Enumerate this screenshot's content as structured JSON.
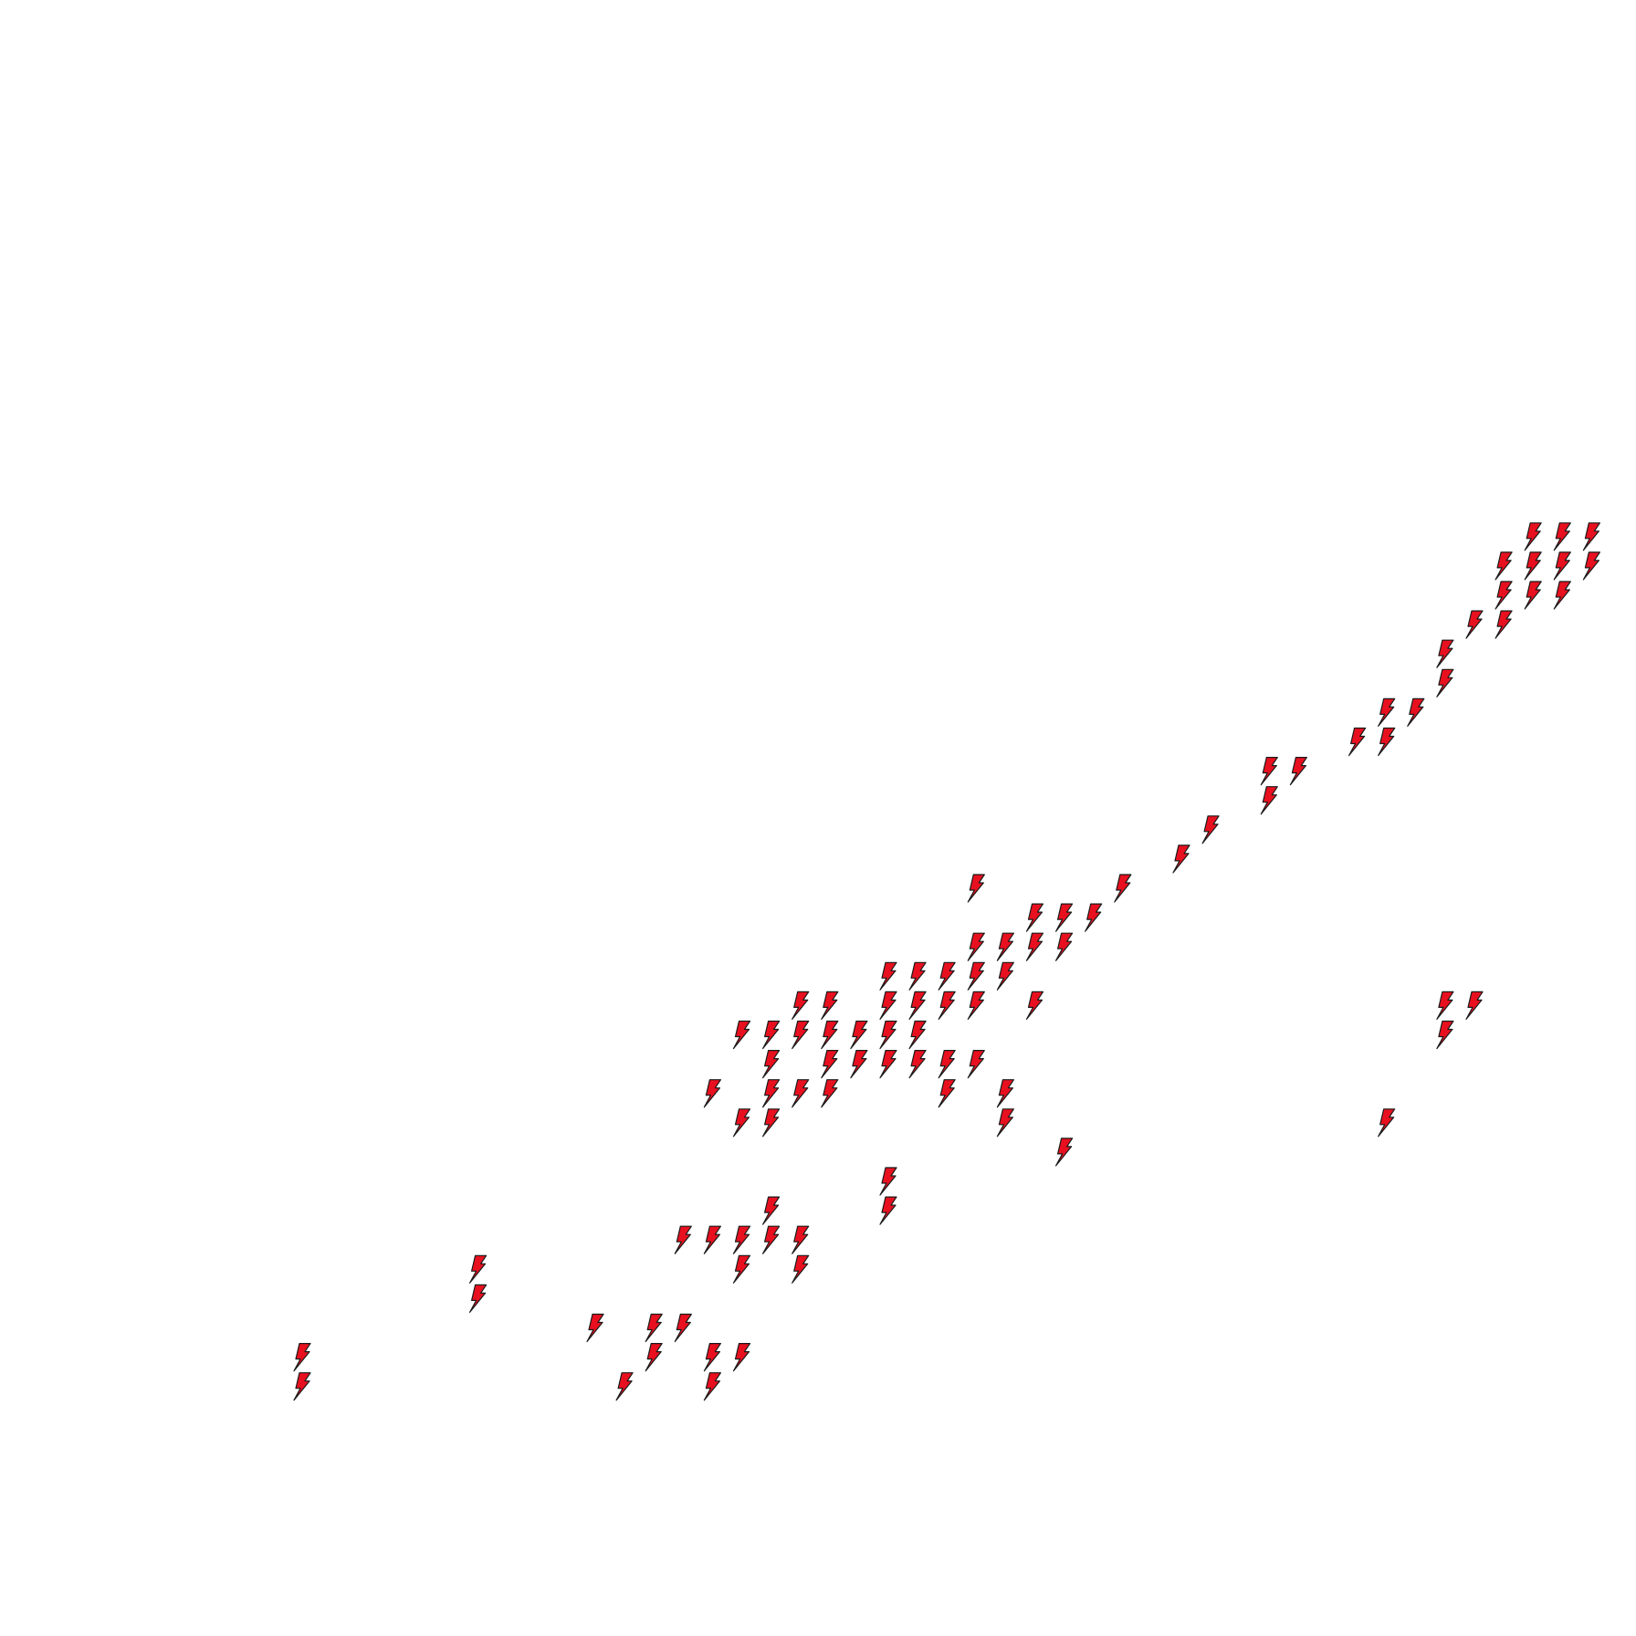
{
  "icon": {
    "name": "lightning-bolt-icon",
    "fill": "#e8101f",
    "stroke": "#1a1a1a"
  },
  "grid": {
    "columns": 55,
    "rows": 55
  },
  "bolts": [
    [
      10,
      46
    ],
    [
      10,
      47
    ],
    [
      16,
      43
    ],
    [
      16,
      44
    ],
    [
      20,
      45
    ],
    [
      21,
      47
    ],
    [
      22,
      45
    ],
    [
      22,
      46
    ],
    [
      23,
      45
    ],
    [
      24,
      46
    ],
    [
      24,
      47
    ],
    [
      25,
      46
    ],
    [
      23,
      42
    ],
    [
      24,
      42
    ],
    [
      25,
      42
    ],
    [
      25,
      43
    ],
    [
      26,
      41
    ],
    [
      26,
      42
    ],
    [
      27,
      42
    ],
    [
      27,
      43
    ],
    [
      30,
      40
    ],
    [
      30,
      41
    ],
    [
      24,
      37
    ],
    [
      25,
      35
    ],
    [
      25,
      38
    ],
    [
      26,
      35
    ],
    [
      26,
      36
    ],
    [
      26,
      37
    ],
    [
      26,
      38
    ],
    [
      27,
      34
    ],
    [
      27,
      35
    ],
    [
      27,
      37
    ],
    [
      28,
      34
    ],
    [
      28,
      35
    ],
    [
      28,
      36
    ],
    [
      28,
      37
    ],
    [
      29,
      35
    ],
    [
      29,
      36
    ],
    [
      30,
      33
    ],
    [
      30,
      34
    ],
    [
      30,
      35
    ],
    [
      30,
      36
    ],
    [
      31,
      33
    ],
    [
      31,
      34
    ],
    [
      31,
      35
    ],
    [
      31,
      36
    ],
    [
      32,
      33
    ],
    [
      32,
      34
    ],
    [
      32,
      36
    ],
    [
      32,
      37
    ],
    [
      33,
      30
    ],
    [
      33,
      32
    ],
    [
      33,
      33
    ],
    [
      33,
      34
    ],
    [
      33,
      36
    ],
    [
      34,
      32
    ],
    [
      34,
      33
    ],
    [
      34,
      37
    ],
    [
      34,
      38
    ],
    [
      35,
      31
    ],
    [
      35,
      32
    ],
    [
      35,
      34
    ],
    [
      36,
      31
    ],
    [
      36,
      32
    ],
    [
      36,
      39
    ],
    [
      37,
      31
    ],
    [
      38,
      30
    ],
    [
      40,
      29
    ],
    [
      41,
      28
    ],
    [
      43,
      26
    ],
    [
      43,
      27
    ],
    [
      44,
      26
    ],
    [
      46,
      25
    ],
    [
      47,
      24
    ],
    [
      47,
      25
    ],
    [
      48,
      24
    ],
    [
      47,
      38
    ],
    [
      49,
      22
    ],
    [
      49,
      23
    ],
    [
      49,
      34
    ],
    [
      49,
      35
    ],
    [
      50,
      21
    ],
    [
      50,
      34
    ],
    [
      51,
      20
    ],
    [
      51,
      21
    ],
    [
      51,
      19
    ],
    [
      52,
      18
    ],
    [
      52,
      19
    ],
    [
      52,
      20
    ],
    [
      53,
      18
    ],
    [
      53,
      19
    ],
    [
      53,
      20
    ],
    [
      54,
      18
    ],
    [
      54,
      19
    ]
  ]
}
